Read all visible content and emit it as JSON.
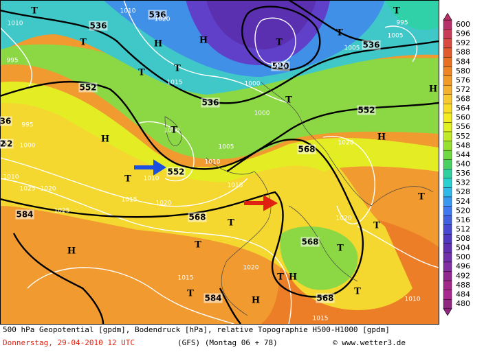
{
  "legend": {
    "levels": [
      600,
      596,
      592,
      588,
      584,
      580,
      576,
      572,
      568,
      564,
      560,
      556,
      552,
      548,
      544,
      540,
      536,
      532,
      528,
      524,
      520,
      516,
      512,
      508,
      504,
      500,
      496,
      492,
      488,
      484,
      480
    ],
    "colors": [
      "#b8306a",
      "#c83c58",
      "#d84a40",
      "#e05a2c",
      "#e87022",
      "#ee8424",
      "#f29a28",
      "#f6b030",
      "#f8c830",
      "#f8dc28",
      "#f4ec20",
      "#e0f020",
      "#c0ea28",
      "#98e030",
      "#70d840",
      "#48d060",
      "#30d0a0",
      "#28d0d0",
      "#30b8e8",
      "#3898f0",
      "#4078f0",
      "#4060e0",
      "#4848d0",
      "#5038c0",
      "#6030b0",
      "#7030a8",
      "#8030a0",
      "#902890",
      "#a02888",
      "#a82890",
      "#902880"
    ]
  },
  "map": {
    "contour_labels": [
      "536",
      "536",
      "536",
      "536",
      "520",
      "552",
      "552",
      "552",
      "552",
      "568",
      "568",
      "568",
      "568",
      "584",
      "584",
      "36",
      "2"
    ],
    "pressure_labels": [
      "1010",
      "1010",
      "995",
      "1010",
      "1015",
      "1000",
      "1000",
      "1000",
      "995",
      "1000",
      "1005",
      "1015",
      "1010",
      "1020",
      "1025",
      "1020",
      "1015",
      "1025",
      "1020",
      "1015",
      "1020",
      "1015",
      "1010",
      "1005",
      "1020",
      "995",
      "1005",
      "1010",
      "1015",
      "1020"
    ],
    "markers": [
      "T",
      "H",
      "H",
      "T",
      "T",
      "T",
      "T",
      "T",
      "T",
      "T",
      "H",
      "T",
      "T",
      "H",
      "H",
      "T",
      "T",
      "T",
      "T",
      "H",
      "H",
      "T",
      "T",
      "H",
      "T",
      "T"
    ]
  },
  "footer": {
    "description": "500 hPa Geopotential [gpdm], Bodendruck [hPa], relative Topographie H500-H1000 [gpdm]",
    "date": "Donnerstag, 29-04-2010  12 UTC",
    "model": "(GFS)  (Montag 06 + 78)",
    "copyright": "© www.wetter3.de"
  }
}
